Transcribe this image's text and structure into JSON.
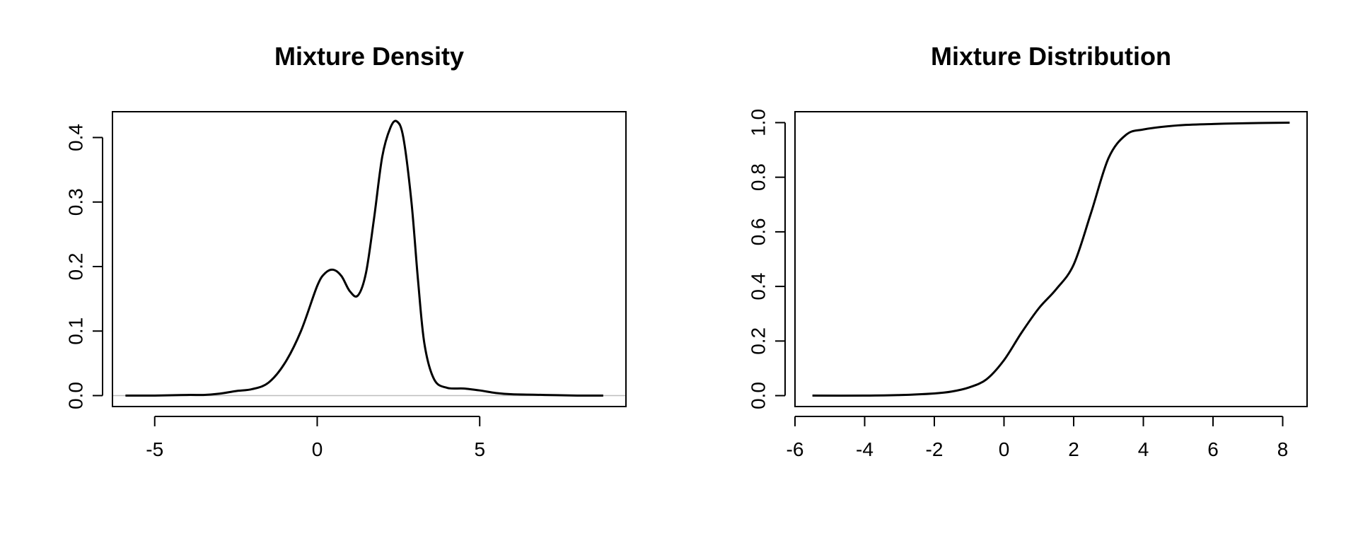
{
  "chart_data": [
    {
      "type": "line",
      "title": "Mixture Density",
      "xlabel": "",
      "ylabel": "",
      "xlim": [
        -6.3,
        9.5
      ],
      "ylim": [
        -0.017,
        0.44
      ],
      "xticks": [
        -5,
        0,
        5
      ],
      "xtick_labels": [
        "-5",
        "0",
        "5"
      ],
      "yticks": [
        0.0,
        0.1,
        0.2,
        0.3,
        0.4
      ],
      "ytick_labels": [
        "0.0",
        "0.1",
        "0.2",
        "0.3",
        "0.4"
      ],
      "grid": false,
      "legend": "none",
      "hline": 0,
      "line_color": "#000000",
      "baseline_color": "#bebebe",
      "series": [
        {
          "x": [
            -5.9,
            -5.0,
            -4.0,
            -3.5,
            -3.0,
            -2.5,
            -2.0,
            -1.5,
            -1.0,
            -0.5,
            0.0,
            0.25,
            0.5,
            0.75,
            1.0,
            1.25,
            1.5,
            1.75,
            2.0,
            2.25,
            2.45,
            2.65,
            2.9,
            3.1,
            3.3,
            3.6,
            4.0,
            4.5,
            5.0,
            5.5,
            6.0,
            7.0,
            8.0,
            8.8
          ],
          "y": [
            0.0,
            0.0,
            0.001,
            0.001,
            0.003,
            0.007,
            0.01,
            0.02,
            0.05,
            0.1,
            0.17,
            0.19,
            0.195,
            0.185,
            0.162,
            0.155,
            0.19,
            0.275,
            0.37,
            0.415,
            0.425,
            0.4,
            0.3,
            0.18,
            0.08,
            0.025,
            0.012,
            0.011,
            0.008,
            0.004,
            0.002,
            0.001,
            0.0,
            0.0
          ]
        }
      ]
    },
    {
      "type": "line",
      "title": "Mixture Distribution",
      "xlabel": "",
      "ylabel": "",
      "xlim": [
        -6.0,
        8.7
      ],
      "ylim": [
        -0.04,
        1.04
      ],
      "xticks": [
        -6,
        -4,
        -2,
        0,
        2,
        4,
        6,
        8
      ],
      "xtick_labels": [
        "-6",
        "-4",
        "-2",
        "0",
        "2",
        "4",
        "6",
        "8"
      ],
      "yticks": [
        0.0,
        0.2,
        0.4,
        0.6,
        0.8,
        1.0
      ],
      "ytick_labels": [
        "0.0",
        "0.2",
        "0.4",
        "0.6",
        "0.8",
        "1.0"
      ],
      "grid": false,
      "legend": "none",
      "line_color": "#000000",
      "series": [
        {
          "x": [
            -5.5,
            -4.0,
            -3.0,
            -2.0,
            -1.5,
            -1.0,
            -0.5,
            0.0,
            0.5,
            1.0,
            1.5,
            2.0,
            2.5,
            3.0,
            3.5,
            4.0,
            5.0,
            6.0,
            7.0,
            8.2
          ],
          "y": [
            0.0,
            0.0,
            0.002,
            0.008,
            0.015,
            0.03,
            0.06,
            0.13,
            0.23,
            0.32,
            0.39,
            0.48,
            0.67,
            0.87,
            0.955,
            0.975,
            0.99,
            0.995,
            0.998,
            1.0
          ]
        }
      ]
    }
  ]
}
